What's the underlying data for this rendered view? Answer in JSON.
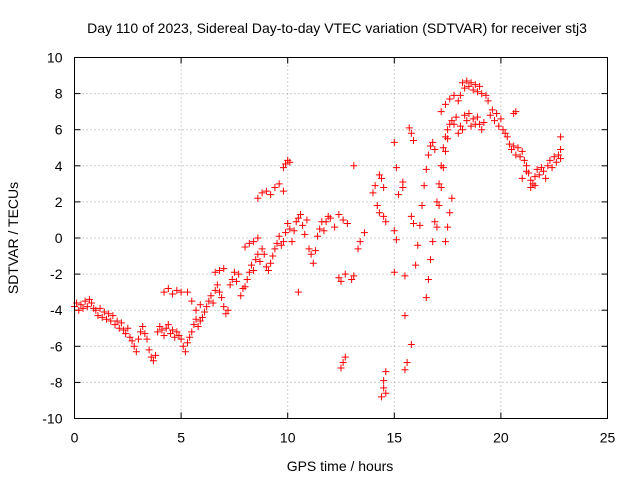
{
  "chart_data": {
    "type": "scatter",
    "title": "Day 110 of 2023, Sidereal Day-to-day VTEC variation (SDTVAR) for receiver stj3",
    "xlabel": "GPS time / hours",
    "ylabel": "SDTVAR / TECUs",
    "xlim": [
      0,
      25
    ],
    "ylim": [
      -10,
      10
    ],
    "xticks": [
      0,
      5,
      10,
      15,
      20,
      25
    ],
    "yticks": [
      -10,
      -8,
      -6,
      -4,
      -2,
      0,
      2,
      4,
      6,
      8,
      10
    ],
    "grid": true,
    "marker": "plus",
    "series": [
      {
        "name": "SDTVAR",
        "color": "#ff0000",
        "points": [
          [
            0.0,
            -3.8
          ],
          [
            0.1,
            -3.6
          ],
          [
            0.2,
            -4.0
          ],
          [
            0.3,
            -3.7
          ],
          [
            0.4,
            -3.9
          ],
          [
            0.5,
            -3.5
          ],
          [
            0.6,
            -3.8
          ],
          [
            0.7,
            -3.4
          ],
          [
            0.8,
            -3.6
          ],
          [
            0.9,
            -3.9
          ],
          [
            1.0,
            -4.0
          ],
          [
            1.1,
            -4.3
          ],
          [
            1.2,
            -3.9
          ],
          [
            1.3,
            -4.4
          ],
          [
            1.4,
            -4.1
          ],
          [
            1.5,
            -4.5
          ],
          [
            1.6,
            -4.2
          ],
          [
            1.7,
            -4.6
          ],
          [
            1.8,
            -4.3
          ],
          [
            1.9,
            -4.8
          ],
          [
            2.0,
            -4.6
          ],
          [
            2.1,
            -5.0
          ],
          [
            2.2,
            -4.7
          ],
          [
            2.3,
            -5.1
          ],
          [
            2.4,
            -5.3
          ],
          [
            2.5,
            -5.0
          ],
          [
            2.6,
            -5.5
          ],
          [
            2.7,
            -5.7
          ],
          [
            2.8,
            -6.0
          ],
          [
            2.9,
            -6.3
          ],
          [
            3.0,
            -5.6
          ],
          [
            3.1,
            -5.2
          ],
          [
            3.2,
            -4.9
          ],
          [
            3.3,
            -5.3
          ],
          [
            3.4,
            -5.6
          ],
          [
            3.5,
            -6.2
          ],
          [
            3.6,
            -6.6
          ],
          [
            3.7,
            -6.8
          ],
          [
            3.8,
            -6.5
          ],
          [
            3.9,
            -5.2
          ],
          [
            4.0,
            -4.9
          ],
          [
            4.1,
            -5.1
          ],
          [
            4.2,
            -5.4
          ],
          [
            4.3,
            -5.0
          ],
          [
            4.4,
            -4.8
          ],
          [
            4.5,
            -5.3
          ],
          [
            4.6,
            -5.1
          ],
          [
            4.7,
            -5.5
          ],
          [
            4.8,
            -5.2
          ],
          [
            4.9,
            -5.4
          ],
          [
            4.2,
            -3.0
          ],
          [
            4.4,
            -2.8
          ],
          [
            4.6,
            -3.1
          ],
          [
            4.8,
            -2.9
          ],
          [
            5.0,
            -3.0
          ],
          [
            5.0,
            -5.6
          ],
          [
            5.1,
            -6.0
          ],
          [
            5.2,
            -6.3
          ],
          [
            5.3,
            -5.8
          ],
          [
            5.4,
            -5.5
          ],
          [
            5.5,
            -5.2
          ],
          [
            5.6,
            -4.8
          ],
          [
            5.7,
            -4.5
          ],
          [
            5.8,
            -4.9
          ],
          [
            5.9,
            -4.6
          ],
          [
            5.3,
            -3.0
          ],
          [
            5.5,
            -3.5
          ],
          [
            5.7,
            -4.0
          ],
          [
            5.9,
            -3.7
          ],
          [
            6.0,
            -4.4
          ],
          [
            6.1,
            -4.1
          ],
          [
            6.2,
            -3.8
          ],
          [
            6.3,
            -3.5
          ],
          [
            6.4,
            -3.2
          ],
          [
            6.5,
            -3.6
          ],
          [
            6.6,
            -2.9
          ],
          [
            6.7,
            -2.6
          ],
          [
            6.8,
            -3.0
          ],
          [
            6.9,
            -3.3
          ],
          [
            7.0,
            -3.8
          ],
          [
            7.1,
            -4.2
          ],
          [
            7.2,
            -4.0
          ],
          [
            7.3,
            -2.6
          ],
          [
            7.4,
            -2.3
          ],
          [
            7.5,
            -1.9
          ],
          [
            7.6,
            -2.4
          ],
          [
            7.7,
            -2.0
          ],
          [
            7.8,
            -3.2
          ],
          [
            7.9,
            -2.8
          ],
          [
            6.6,
            -1.9
          ],
          [
            6.8,
            -1.8
          ],
          [
            7.0,
            -1.7
          ],
          [
            8.0,
            -2.7
          ],
          [
            8.1,
            -2.3
          ],
          [
            8.2,
            -1.9
          ],
          [
            8.3,
            -1.5
          ],
          [
            8.4,
            -1.8
          ],
          [
            8.5,
            -1.2
          ],
          [
            8.6,
            -0.9
          ],
          [
            8.7,
            -1.3
          ],
          [
            8.8,
            -0.6
          ],
          [
            8.9,
            -0.9
          ],
          [
            8.0,
            -0.5
          ],
          [
            8.2,
            -0.3
          ],
          [
            8.4,
            -0.2
          ],
          [
            8.6,
            0.0
          ],
          [
            9.0,
            -1.6
          ],
          [
            9.1,
            -1.8
          ],
          [
            9.2,
            -1.4
          ],
          [
            9.3,
            -1.0
          ],
          [
            9.4,
            -0.6
          ],
          [
            9.5,
            -0.3
          ],
          [
            9.6,
            0.1
          ],
          [
            9.7,
            -0.4
          ],
          [
            9.8,
            -0.2
          ],
          [
            9.9,
            0.3
          ],
          [
            8.6,
            2.2
          ],
          [
            8.8,
            2.5
          ],
          [
            9.0,
            2.6
          ],
          [
            9.2,
            2.4
          ],
          [
            9.4,
            2.8
          ],
          [
            9.6,
            3.0
          ],
          [
            9.8,
            2.6
          ],
          [
            9.8,
            3.9
          ],
          [
            9.9,
            4.1
          ],
          [
            10.0,
            4.3
          ],
          [
            10.1,
            4.2
          ],
          [
            10.0,
            0.8
          ],
          [
            10.1,
            0.5
          ],
          [
            10.2,
            -0.2
          ],
          [
            10.3,
            0.4
          ],
          [
            10.4,
            0.9
          ],
          [
            10.5,
            1.1
          ],
          [
            10.6,
            1.3
          ],
          [
            10.7,
            0.7
          ],
          [
            10.8,
            0.2
          ],
          [
            10.9,
            1.0
          ],
          [
            10.5,
            -3.0
          ],
          [
            11.0,
            -0.6
          ],
          [
            11.1,
            -0.9
          ],
          [
            11.2,
            -1.4
          ],
          [
            11.3,
            -0.7
          ],
          [
            11.4,
            0.1
          ],
          [
            11.5,
            0.5
          ],
          [
            11.6,
            0.9
          ],
          [
            11.7,
            0.4
          ],
          [
            11.8,
            0.9
          ],
          [
            11.9,
            1.2
          ],
          [
            12.0,
            1.1
          ],
          [
            12.2,
            0.6
          ],
          [
            12.4,
            1.3
          ],
          [
            12.6,
            1.0
          ],
          [
            12.8,
            0.8
          ],
          [
            12.4,
            -2.2
          ],
          [
            12.5,
            -2.4
          ],
          [
            12.7,
            -2.0
          ],
          [
            12.5,
            -7.2
          ],
          [
            12.6,
            -6.9
          ],
          [
            12.7,
            -6.6
          ],
          [
            13.0,
            -2.3
          ],
          [
            13.1,
            -2.1
          ],
          [
            13.3,
            -0.6
          ],
          [
            13.4,
            -0.2
          ],
          [
            13.6,
            0.3
          ],
          [
            13.1,
            4.0
          ],
          [
            14.0,
            2.5
          ],
          [
            14.1,
            2.9
          ],
          [
            14.2,
            1.8
          ],
          [
            14.3,
            1.4
          ],
          [
            14.4,
            3.3
          ],
          [
            14.5,
            1.2
          ],
          [
            14.6,
            0.9
          ],
          [
            14.3,
            3.5
          ],
          [
            14.5,
            2.8
          ],
          [
            14.4,
            -8.8
          ],
          [
            14.5,
            -8.3
          ],
          [
            14.5,
            -7.9
          ],
          [
            14.6,
            -7.4
          ],
          [
            14.6,
            -8.6
          ],
          [
            15.0,
            5.3
          ],
          [
            15.1,
            3.9
          ],
          [
            15.0,
            0.4
          ],
          [
            15.1,
            -0.1
          ],
          [
            15.0,
            -1.9
          ],
          [
            15.2,
            2.4
          ],
          [
            15.4,
            3.1
          ],
          [
            15.4,
            2.8
          ],
          [
            15.5,
            -2.1
          ],
          [
            15.5,
            -4.3
          ],
          [
            15.5,
            -7.3
          ],
          [
            15.6,
            -6.9
          ],
          [
            15.8,
            -5.9
          ],
          [
            15.7,
            6.1
          ],
          [
            15.8,
            5.8
          ],
          [
            15.9,
            5.4
          ],
          [
            15.8,
            1.2
          ],
          [
            15.9,
            0.8
          ],
          [
            16.0,
            -1.5
          ],
          [
            16.1,
            -0.4
          ],
          [
            16.2,
            0.7
          ],
          [
            16.3,
            1.8
          ],
          [
            16.4,
            2.9
          ],
          [
            16.5,
            3.8
          ],
          [
            16.6,
            4.6
          ],
          [
            16.7,
            5.1
          ],
          [
            16.8,
            5.3
          ],
          [
            16.9,
            4.9
          ],
          [
            16.5,
            -3.3
          ],
          [
            16.6,
            -2.3
          ],
          [
            16.7,
            -1.2
          ],
          [
            16.8,
            -0.2
          ],
          [
            16.9,
            0.9
          ],
          [
            17.0,
            2.0
          ],
          [
            17.1,
            3.0
          ],
          [
            17.2,
            4.0
          ],
          [
            17.3,
            5.0
          ],
          [
            17.4,
            5.6
          ],
          [
            17.0,
            0.6
          ],
          [
            17.1,
            1.8
          ],
          [
            17.2,
            2.8
          ],
          [
            17.3,
            3.9
          ],
          [
            17.4,
            4.8
          ],
          [
            17.5,
            5.5
          ],
          [
            17.4,
            -0.2
          ],
          [
            17.5,
            0.6
          ],
          [
            17.6,
            1.4
          ],
          [
            17.7,
            2.2
          ],
          [
            17.5,
            6.0
          ],
          [
            17.6,
            6.3
          ],
          [
            17.7,
            6.5
          ],
          [
            17.8,
            6.3
          ],
          [
            17.9,
            6.7
          ],
          [
            17.2,
            7.0
          ],
          [
            17.4,
            7.4
          ],
          [
            17.6,
            7.7
          ],
          [
            17.8,
            7.9
          ],
          [
            18.0,
            7.6
          ],
          [
            18.1,
            7.9
          ],
          [
            18.0,
            5.8
          ],
          [
            18.1,
            6.2
          ],
          [
            18.2,
            6.0
          ],
          [
            18.3,
            6.8
          ],
          [
            18.4,
            6.5
          ],
          [
            18.5,
            6.9
          ],
          [
            18.6,
            6.2
          ],
          [
            18.7,
            6.6
          ],
          [
            18.8,
            6.3
          ],
          [
            18.9,
            6.7
          ],
          [
            18.2,
            8.6
          ],
          [
            18.3,
            8.3
          ],
          [
            18.4,
            8.7
          ],
          [
            18.5,
            8.4
          ],
          [
            18.6,
            8.6
          ],
          [
            18.7,
            8.2
          ],
          [
            18.8,
            8.5
          ],
          [
            18.9,
            8.1
          ],
          [
            19.0,
            8.4
          ],
          [
            19.1,
            8.0
          ],
          [
            19.0,
            6.3
          ],
          [
            19.1,
            6.0
          ],
          [
            19.2,
            6.4
          ],
          [
            19.3,
            7.9
          ],
          [
            19.4,
            7.6
          ],
          [
            19.5,
            6.8
          ],
          [
            19.6,
            7.1
          ],
          [
            19.7,
            6.5
          ],
          [
            19.8,
            6.9
          ],
          [
            19.9,
            6.2
          ],
          [
            20.0,
            6.6
          ],
          [
            20.1,
            6.0
          ],
          [
            20.2,
            5.8
          ],
          [
            20.3,
            5.6
          ],
          [
            20.4,
            5.2
          ],
          [
            20.5,
            4.9
          ],
          [
            20.6,
            5.1
          ],
          [
            20.7,
            4.6
          ],
          [
            20.8,
            5.0
          ],
          [
            20.9,
            4.5
          ],
          [
            20.6,
            6.9
          ],
          [
            20.7,
            7.0
          ],
          [
            21.0,
            4.8
          ],
          [
            21.1,
            4.3
          ],
          [
            21.2,
            4.0
          ],
          [
            21.3,
            3.6
          ],
          [
            21.4,
            3.2
          ],
          [
            21.5,
            3.0
          ],
          [
            21.6,
            3.4
          ],
          [
            21.7,
            3.8
          ],
          [
            21.8,
            3.5
          ],
          [
            21.9,
            3.9
          ],
          [
            21.0,
            3.3
          ],
          [
            21.2,
            3.7
          ],
          [
            21.4,
            2.8
          ],
          [
            21.6,
            2.9
          ],
          [
            22.0,
            3.7
          ],
          [
            22.1,
            3.3
          ],
          [
            22.2,
            4.0
          ],
          [
            22.3,
            4.3
          ],
          [
            22.4,
            3.9
          ],
          [
            22.5,
            4.5
          ],
          [
            22.6,
            4.2
          ],
          [
            22.7,
            4.6
          ],
          [
            22.8,
            5.6
          ],
          [
            22.8,
            4.9
          ],
          [
            22.8,
            4.4
          ]
        ]
      }
    ]
  }
}
